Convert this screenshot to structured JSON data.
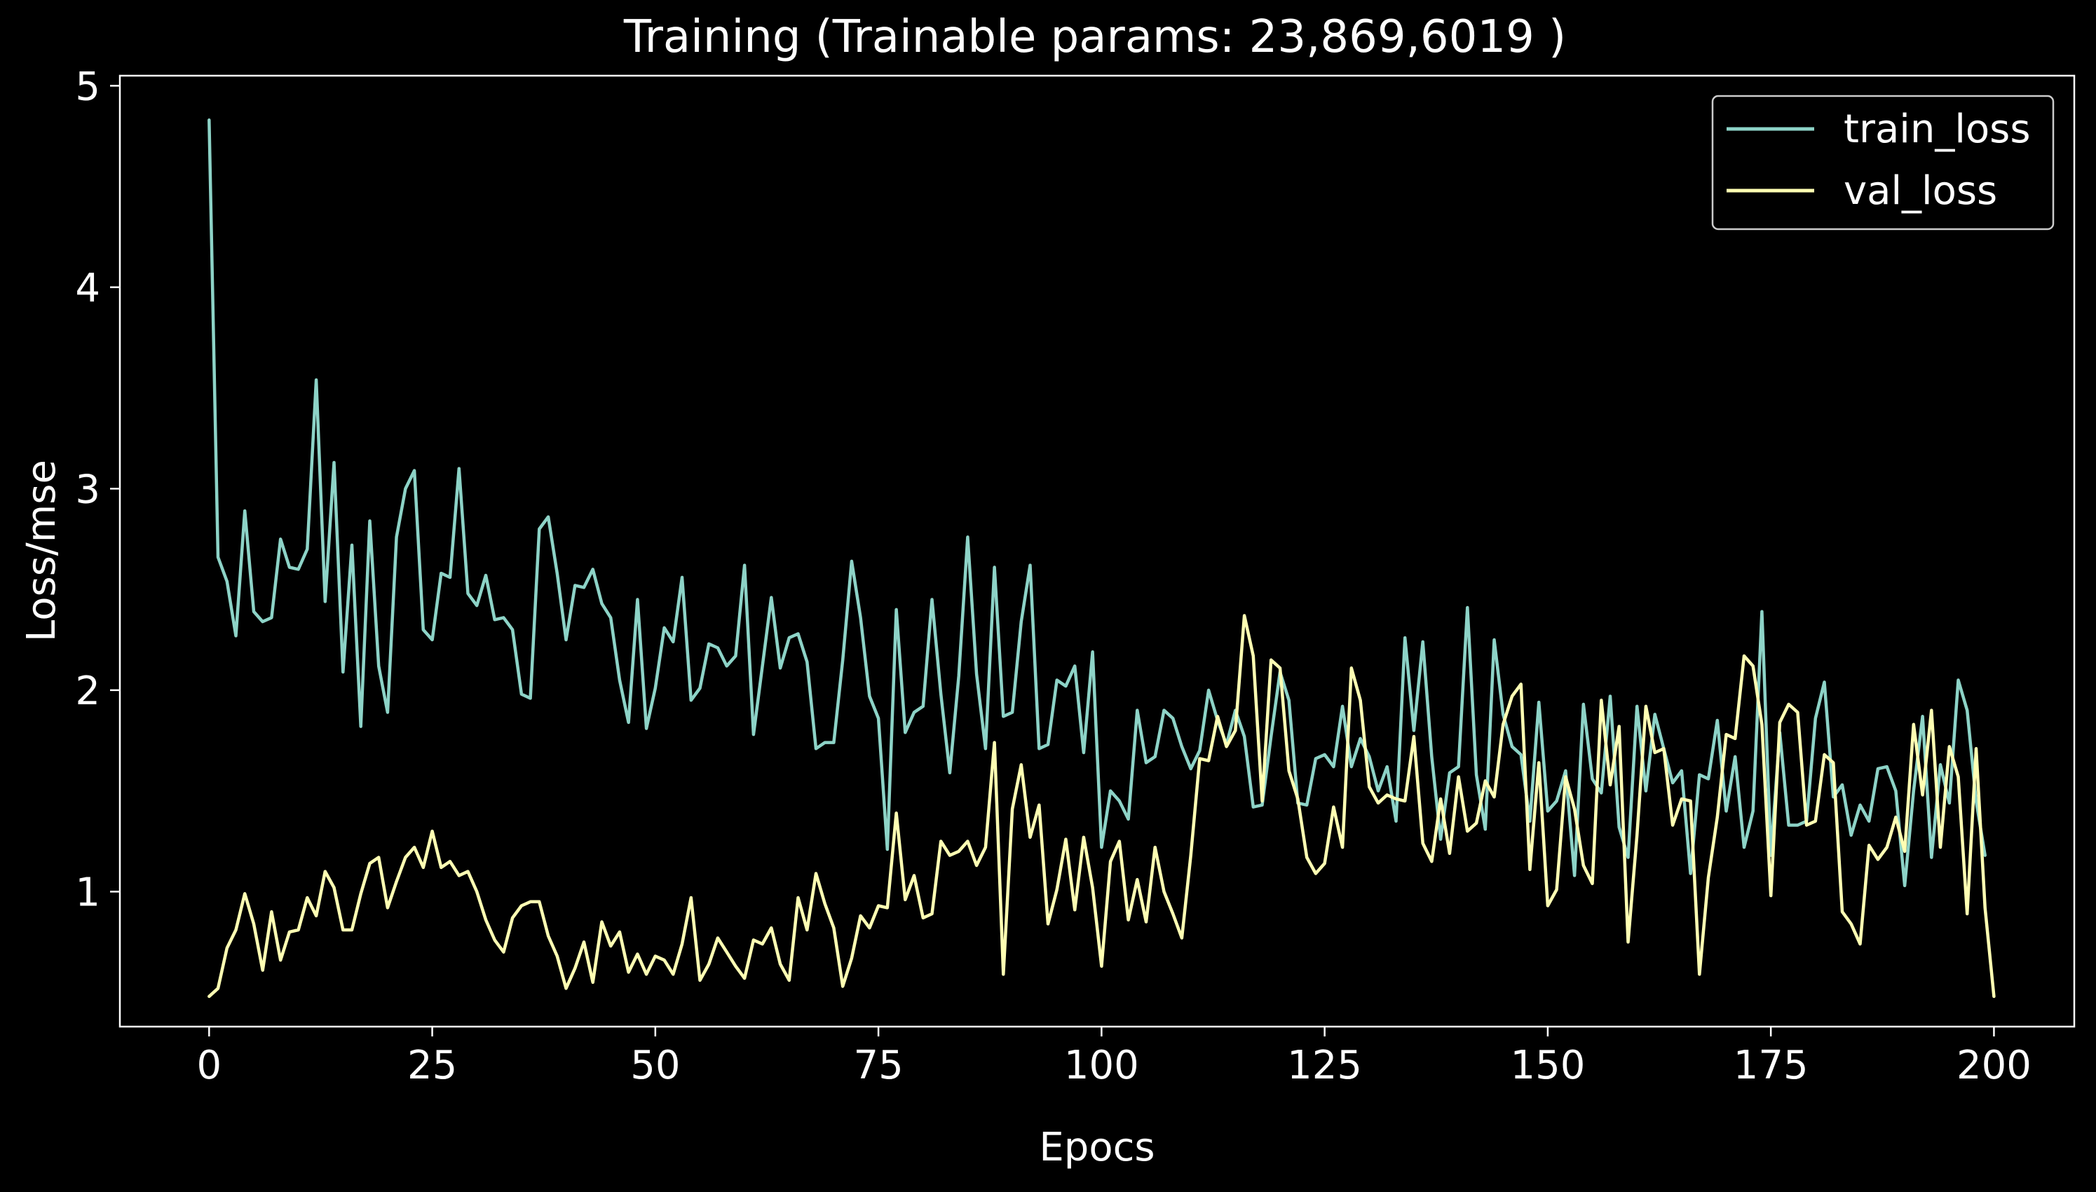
{
  "chart_data": {
    "type": "line",
    "title": "Training (Trainable params: 23,869,6019 )",
    "xlabel": "Epocs",
    "ylabel": "Loss/mse",
    "xlim": [
      -10,
      209
    ],
    "ylim": [
      0.33,
      5.05
    ],
    "xticks": [
      0,
      25,
      50,
      75,
      100,
      125,
      150,
      175,
      200
    ],
    "yticks": [
      1,
      2,
      3,
      4,
      5
    ],
    "grid": false,
    "legend_position": "top-right",
    "series": [
      {
        "name": "train_loss",
        "color": "#8dd3c7",
        "values": [
          4.83,
          2.66,
          2.54,
          2.27,
          2.89,
          2.39,
          2.34,
          2.36,
          2.75,
          2.61,
          2.6,
          2.7,
          3.54,
          2.44,
          3.13,
          2.09,
          2.72,
          1.82,
          2.84,
          2.12,
          1.89,
          2.76,
          3.0,
          3.09,
          2.3,
          2.25,
          2.58,
          2.56,
          3.1,
          2.48,
          2.42,
          2.57,
          2.35,
          2.36,
          2.3,
          1.98,
          1.96,
          2.8,
          2.86,
          2.58,
          2.25,
          2.52,
          2.51,
          2.6,
          2.43,
          2.36,
          2.05,
          1.84,
          2.45,
          1.81,
          2.01,
          2.31,
          2.24,
          2.56,
          1.95,
          2.01,
          2.23,
          2.21,
          2.12,
          2.17,
          2.62,
          1.78,
          2.12,
          2.46,
          2.11,
          2.26,
          2.28,
          2.14,
          1.71,
          1.74,
          1.74,
          2.15,
          2.64,
          2.36,
          1.97,
          1.86,
          1.21,
          2.4,
          1.79,
          1.89,
          1.92,
          2.45,
          1.98,
          1.59,
          2.07,
          2.76,
          2.08,
          1.71,
          2.61,
          1.87,
          1.89,
          2.34,
          2.62,
          1.71,
          1.73,
          2.05,
          2.02,
          2.12,
          1.69,
          2.19,
          1.22,
          1.5,
          1.45,
          1.36,
          1.9,
          1.64,
          1.67,
          1.9,
          1.86,
          1.72,
          1.61,
          1.7,
          2.0,
          1.85,
          1.73,
          1.9,
          1.77,
          1.42,
          1.43,
          1.77,
          2.09,
          1.95,
          1.44,
          1.43,
          1.66,
          1.68,
          1.62,
          1.92,
          1.62,
          1.76,
          1.67,
          1.5,
          1.62,
          1.35,
          2.26,
          1.8,
          2.24,
          1.67,
          1.26,
          1.59,
          1.62,
          2.41,
          1.58,
          1.31,
          2.25,
          1.88,
          1.72,
          1.68,
          1.35,
          1.94,
          1.4,
          1.45,
          1.6,
          1.08,
          1.93,
          1.56,
          1.49,
          1.97,
          1.32,
          1.17,
          1.92,
          1.5,
          1.88,
          1.71,
          1.54,
          1.6,
          1.09,
          1.58,
          1.56,
          1.85,
          1.4,
          1.67,
          1.22,
          1.4,
          2.39,
          1.18,
          1.79,
          1.33,
          1.33,
          1.35,
          1.86,
          2.04,
          1.47,
          1.53,
          1.28,
          1.43,
          1.35,
          1.61,
          1.62,
          1.5,
          1.03,
          1.5,
          1.87,
          1.17,
          1.63,
          1.44,
          2.05,
          1.9,
          1.45,
          1.18
        ]
      },
      {
        "name": "val_loss",
        "color": "#ffffb3",
        "values": [
          0.48,
          0.52,
          0.72,
          0.81,
          0.99,
          0.84,
          0.61,
          0.9,
          0.66,
          0.8,
          0.81,
          0.97,
          0.88,
          1.1,
          1.02,
          0.81,
          0.81,
          0.99,
          1.14,
          1.17,
          0.92,
          1.05,
          1.17,
          1.22,
          1.12,
          1.3,
          1.12,
          1.15,
          1.08,
          1.1,
          1.0,
          0.86,
          0.76,
          0.7,
          0.87,
          0.93,
          0.95,
          0.95,
          0.78,
          0.68,
          0.52,
          0.62,
          0.75,
          0.55,
          0.85,
          0.73,
          0.8,
          0.6,
          0.69,
          0.59,
          0.68,
          0.66,
          0.59,
          0.74,
          0.97,
          0.56,
          0.64,
          0.77,
          0.7,
          0.63,
          0.57,
          0.76,
          0.74,
          0.82,
          0.64,
          0.56,
          0.97,
          0.81,
          1.09,
          0.94,
          0.82,
          0.53,
          0.67,
          0.88,
          0.82,
          0.93,
          0.92,
          1.39,
          0.96,
          1.08,
          0.87,
          0.89,
          1.25,
          1.18,
          1.2,
          1.25,
          1.13,
          1.22,
          1.74,
          0.59,
          1.41,
          1.63,
          1.27,
          1.43,
          0.84,
          1.01,
          1.26,
          0.91,
          1.27,
          1.02,
          0.63,
          1.15,
          1.25,
          0.86,
          1.06,
          0.85,
          1.22,
          1.0,
          0.89,
          0.77,
          1.18,
          1.66,
          1.65,
          1.87,
          1.72,
          1.8,
          2.37,
          2.17,
          1.45,
          2.15,
          2.11,
          1.6,
          1.46,
          1.17,
          1.09,
          1.14,
          1.42,
          1.22,
          2.11,
          1.95,
          1.52,
          1.44,
          1.48,
          1.46,
          1.45,
          1.77,
          1.24,
          1.15,
          1.46,
          1.19,
          1.57,
          1.3,
          1.34,
          1.55,
          1.47,
          1.83,
          1.97,
          2.03,
          1.11,
          1.64,
          0.93,
          1.01,
          1.57,
          1.41,
          1.13,
          1.04,
          1.95,
          1.53,
          1.82,
          0.75,
          1.28,
          1.92,
          1.69,
          1.71,
          1.33,
          1.46,
          1.45,
          0.59,
          1.07,
          1.37,
          1.78,
          1.76,
          2.17,
          2.12,
          1.83,
          0.98,
          1.84,
          1.93,
          1.89,
          1.33,
          1.35,
          1.68,
          1.64,
          0.9,
          0.84,
          0.74,
          1.23,
          1.16,
          1.22,
          1.37,
          1.2,
          1.83,
          1.48,
          1.9,
          1.22,
          1.72,
          1.57,
          0.89,
          1.71,
          0.92,
          0.48
        ]
      }
    ]
  }
}
